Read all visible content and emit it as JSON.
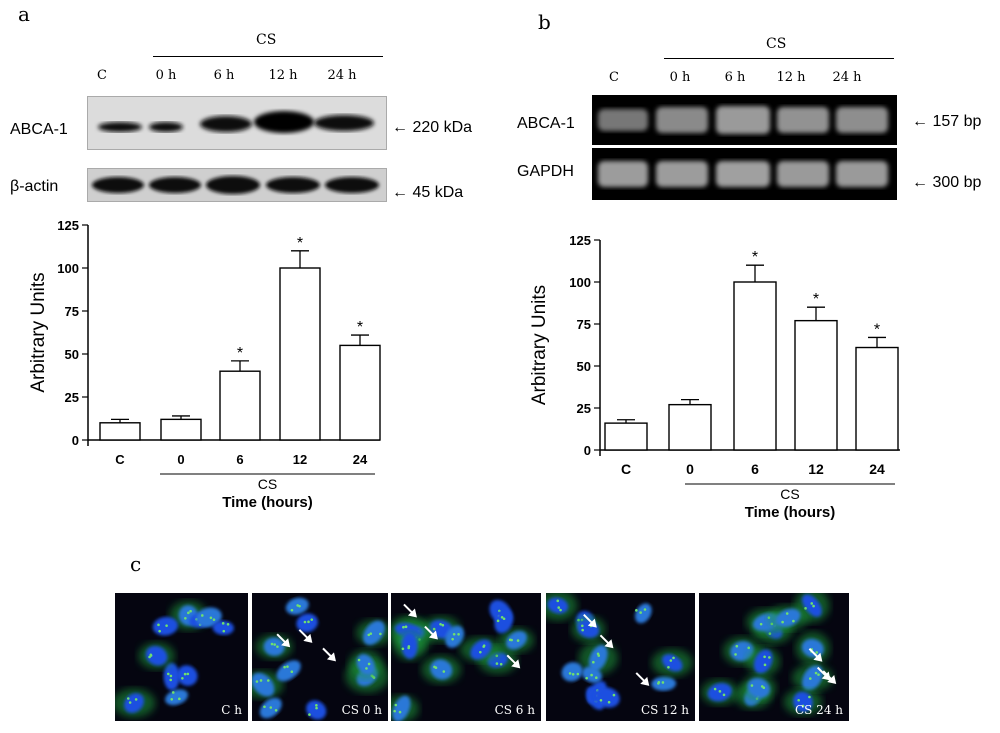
{
  "panels": {
    "a": "a",
    "b": "b",
    "c": "c"
  },
  "panel_a": {
    "group_label": "CS",
    "lanes": [
      "C",
      "0 h",
      "6 h",
      "12 h",
      "24 h"
    ],
    "rows": [
      {
        "label": "ABCA-1",
        "marker": "220 kDa"
      },
      {
        "label": "β-actin",
        "marker": "45 kDa"
      }
    ]
  },
  "panel_b": {
    "group_label": "CS",
    "lanes": [
      "C",
      "0 h",
      "6 h",
      "12 h",
      "24 h"
    ],
    "rows": [
      {
        "label": "ABCA-1",
        "marker": "157 bp"
      },
      {
        "label": "GAPDH",
        "marker": "300 bp"
      }
    ]
  },
  "chart_data": [
    {
      "type": "bar",
      "categories": [
        "C",
        "0",
        "6",
        "12",
        "24"
      ],
      "values": [
        10,
        12,
        40,
        100,
        55
      ],
      "errors": [
        2,
        2,
        6,
        10,
        6
      ],
      "significance": [
        "",
        "",
        "*",
        "*",
        "*"
      ],
      "ylabel": "Arbitrary Units",
      "xlabel": "Time (hours)",
      "group_label": "CS",
      "ylim": [
        0,
        125
      ],
      "yticks": [
        0,
        25,
        50,
        75,
        100,
        125
      ]
    },
    {
      "type": "bar",
      "categories": [
        "C",
        "0",
        "6",
        "12",
        "24"
      ],
      "values": [
        16,
        27,
        100,
        77,
        61
      ],
      "errors": [
        2,
        3,
        10,
        8,
        6
      ],
      "significance": [
        "",
        "",
        "*",
        "*",
        "*"
      ],
      "ylabel": "Arbitrary Units",
      "xlabel": "Time (hours)",
      "group_label": "CS",
      "ylim": [
        0,
        125
      ],
      "yticks": [
        0,
        25,
        50,
        75,
        100,
        125
      ]
    }
  ],
  "panel_c": {
    "images": [
      {
        "label": "C h"
      },
      {
        "label": "CS 0 h"
      },
      {
        "label": "CS 6 h"
      },
      {
        "label": "CS 12 h"
      },
      {
        "label": "CS 24 h"
      }
    ]
  }
}
